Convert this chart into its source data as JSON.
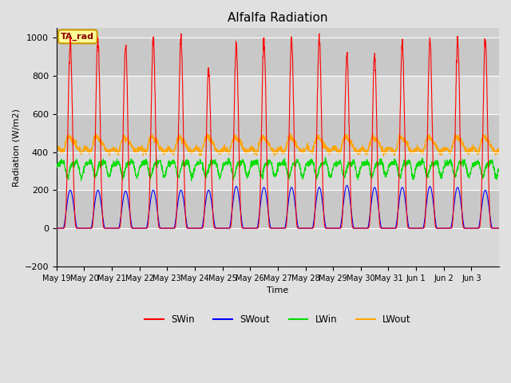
{
  "title": "Alfalfa Radiation",
  "ylabel": "Radiation (W/m2)",
  "xlabel": "Time",
  "ylim": [
    -200,
    1050
  ],
  "figsize": [
    6.4,
    4.8
  ],
  "dpi": 100,
  "background_color": "#e0e0e0",
  "plot_bg_color": "#d0d0d0",
  "annotation_text": "TA_rad",
  "annotation_bg": "#ffff99",
  "annotation_border": "#cc9900",
  "legend_entries": [
    "SWin",
    "SWout",
    "LWin",
    "LWout"
  ],
  "legend_colors": [
    "red",
    "blue",
    "#00cc00",
    "orange"
  ],
  "num_days": 16,
  "x_tick_labels": [
    "May 19",
    "May 20",
    "May 21",
    "May 22",
    "May 23",
    "May 24",
    "May 25",
    "May 26",
    "May 27",
    "May 28",
    "May 29",
    "May 30",
    "May 31",
    "Jun 1",
    "Jun 2",
    "Jun 3"
  ],
  "SWin_peaks": [
    980,
    990,
    970,
    990,
    990,
    830,
    960,
    990,
    990,
    990,
    910,
    900,
    970,
    990,
    990,
    990
  ],
  "SWout_peaks": [
    200,
    200,
    195,
    200,
    200,
    200,
    220,
    215,
    215,
    215,
    225,
    215,
    215,
    220,
    215,
    200
  ],
  "LWin_base": 320,
  "LWin_amp": 35,
  "LWout_base": 410,
  "LWout_amp": 70
}
